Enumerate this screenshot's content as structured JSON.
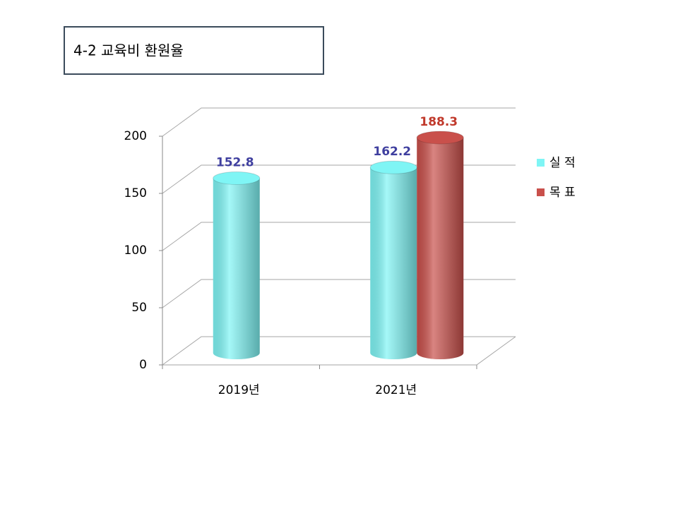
{
  "chart_data": {
    "type": "bar3d",
    "title": "4-2 교육비 환원율",
    "categories": [
      "2019년",
      "2021년"
    ],
    "series": [
      {
        "name": "실 적",
        "color": "#7ff5f5",
        "label_color": "#3f3f9f",
        "values": [
          152.8,
          162.2
        ]
      },
      {
        "name": "목 표",
        "color": "#c9504b",
        "label_color": "#c0392b",
        "values": [
          null,
          188.3
        ]
      }
    ],
    "ylim": [
      0,
      200
    ],
    "yticks": [
      0,
      50,
      100,
      150,
      200
    ],
    "grid": true,
    "legend": "right"
  }
}
